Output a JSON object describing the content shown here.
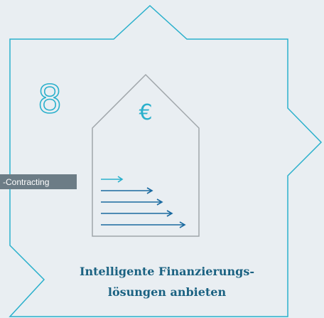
{
  "step_number": "8",
  "currency_symbol": "€",
  "tag_label": "-Contracting",
  "caption": {
    "line1": "Intelligente Finanzierungs-",
    "line2": "lösungen anbieten"
  }
}
